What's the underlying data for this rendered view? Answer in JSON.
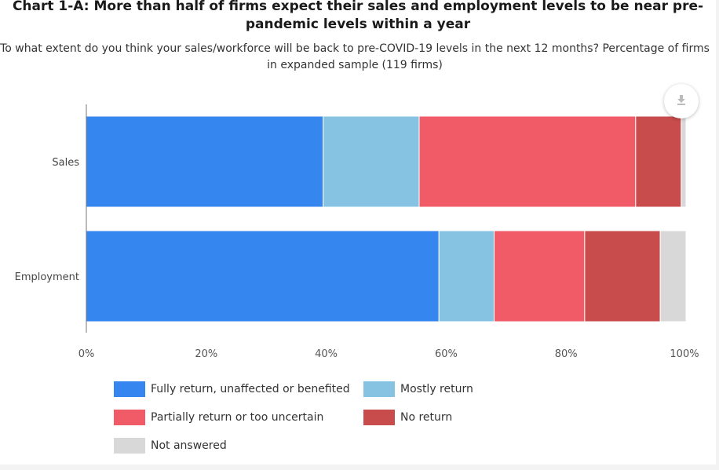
{
  "header": {
    "title": "Chart 1-A: More than half of firms expect their sales and employment levels to be near pre-pandemic levels within a year",
    "subtitle": "To what extent do you think your sales/workforce will be back to pre-COVID-19 levels in the next 12 months? Percentage of firms in expanded sample (119 firms)"
  },
  "toolbar": {
    "download_icon": "download-icon"
  },
  "chart_data": {
    "type": "bar",
    "orientation": "horizontal",
    "stacked": true,
    "title": "Chart 1-A: More than half of firms expect their sales and employment levels to be near pre-pandemic levels within a year",
    "subtitle": "To what extent do you think your sales/workforce will be back to pre-COVID-19 levels in the next 12 months? Percentage of firms in expanded sample (119 firms)",
    "categories": [
      "Sales",
      "Employment"
    ],
    "series": [
      {
        "name": "Fully return, unaffected or benefited",
        "color": "#3586ee",
        "values": [
          39.5,
          58.8
        ]
      },
      {
        "name": "Mostly return",
        "color": "#86c3e3",
        "values": [
          16.0,
          9.2
        ]
      },
      {
        "name": "Partially return or too uncertain",
        "color": "#f05b67",
        "values": [
          36.1,
          15.1
        ]
      },
      {
        "name": "No return",
        "color": "#c84c4c",
        "values": [
          7.6,
          12.6
        ]
      },
      {
        "name": "Not answered",
        "color": "#d8d8d8",
        "values": [
          0.8,
          4.3
        ]
      }
    ],
    "xlim": [
      0,
      100
    ],
    "x_ticks": [
      "0%",
      "20%",
      "40%",
      "60%",
      "80%",
      "100%"
    ],
    "grid": false,
    "legend_position": "bottom"
  }
}
